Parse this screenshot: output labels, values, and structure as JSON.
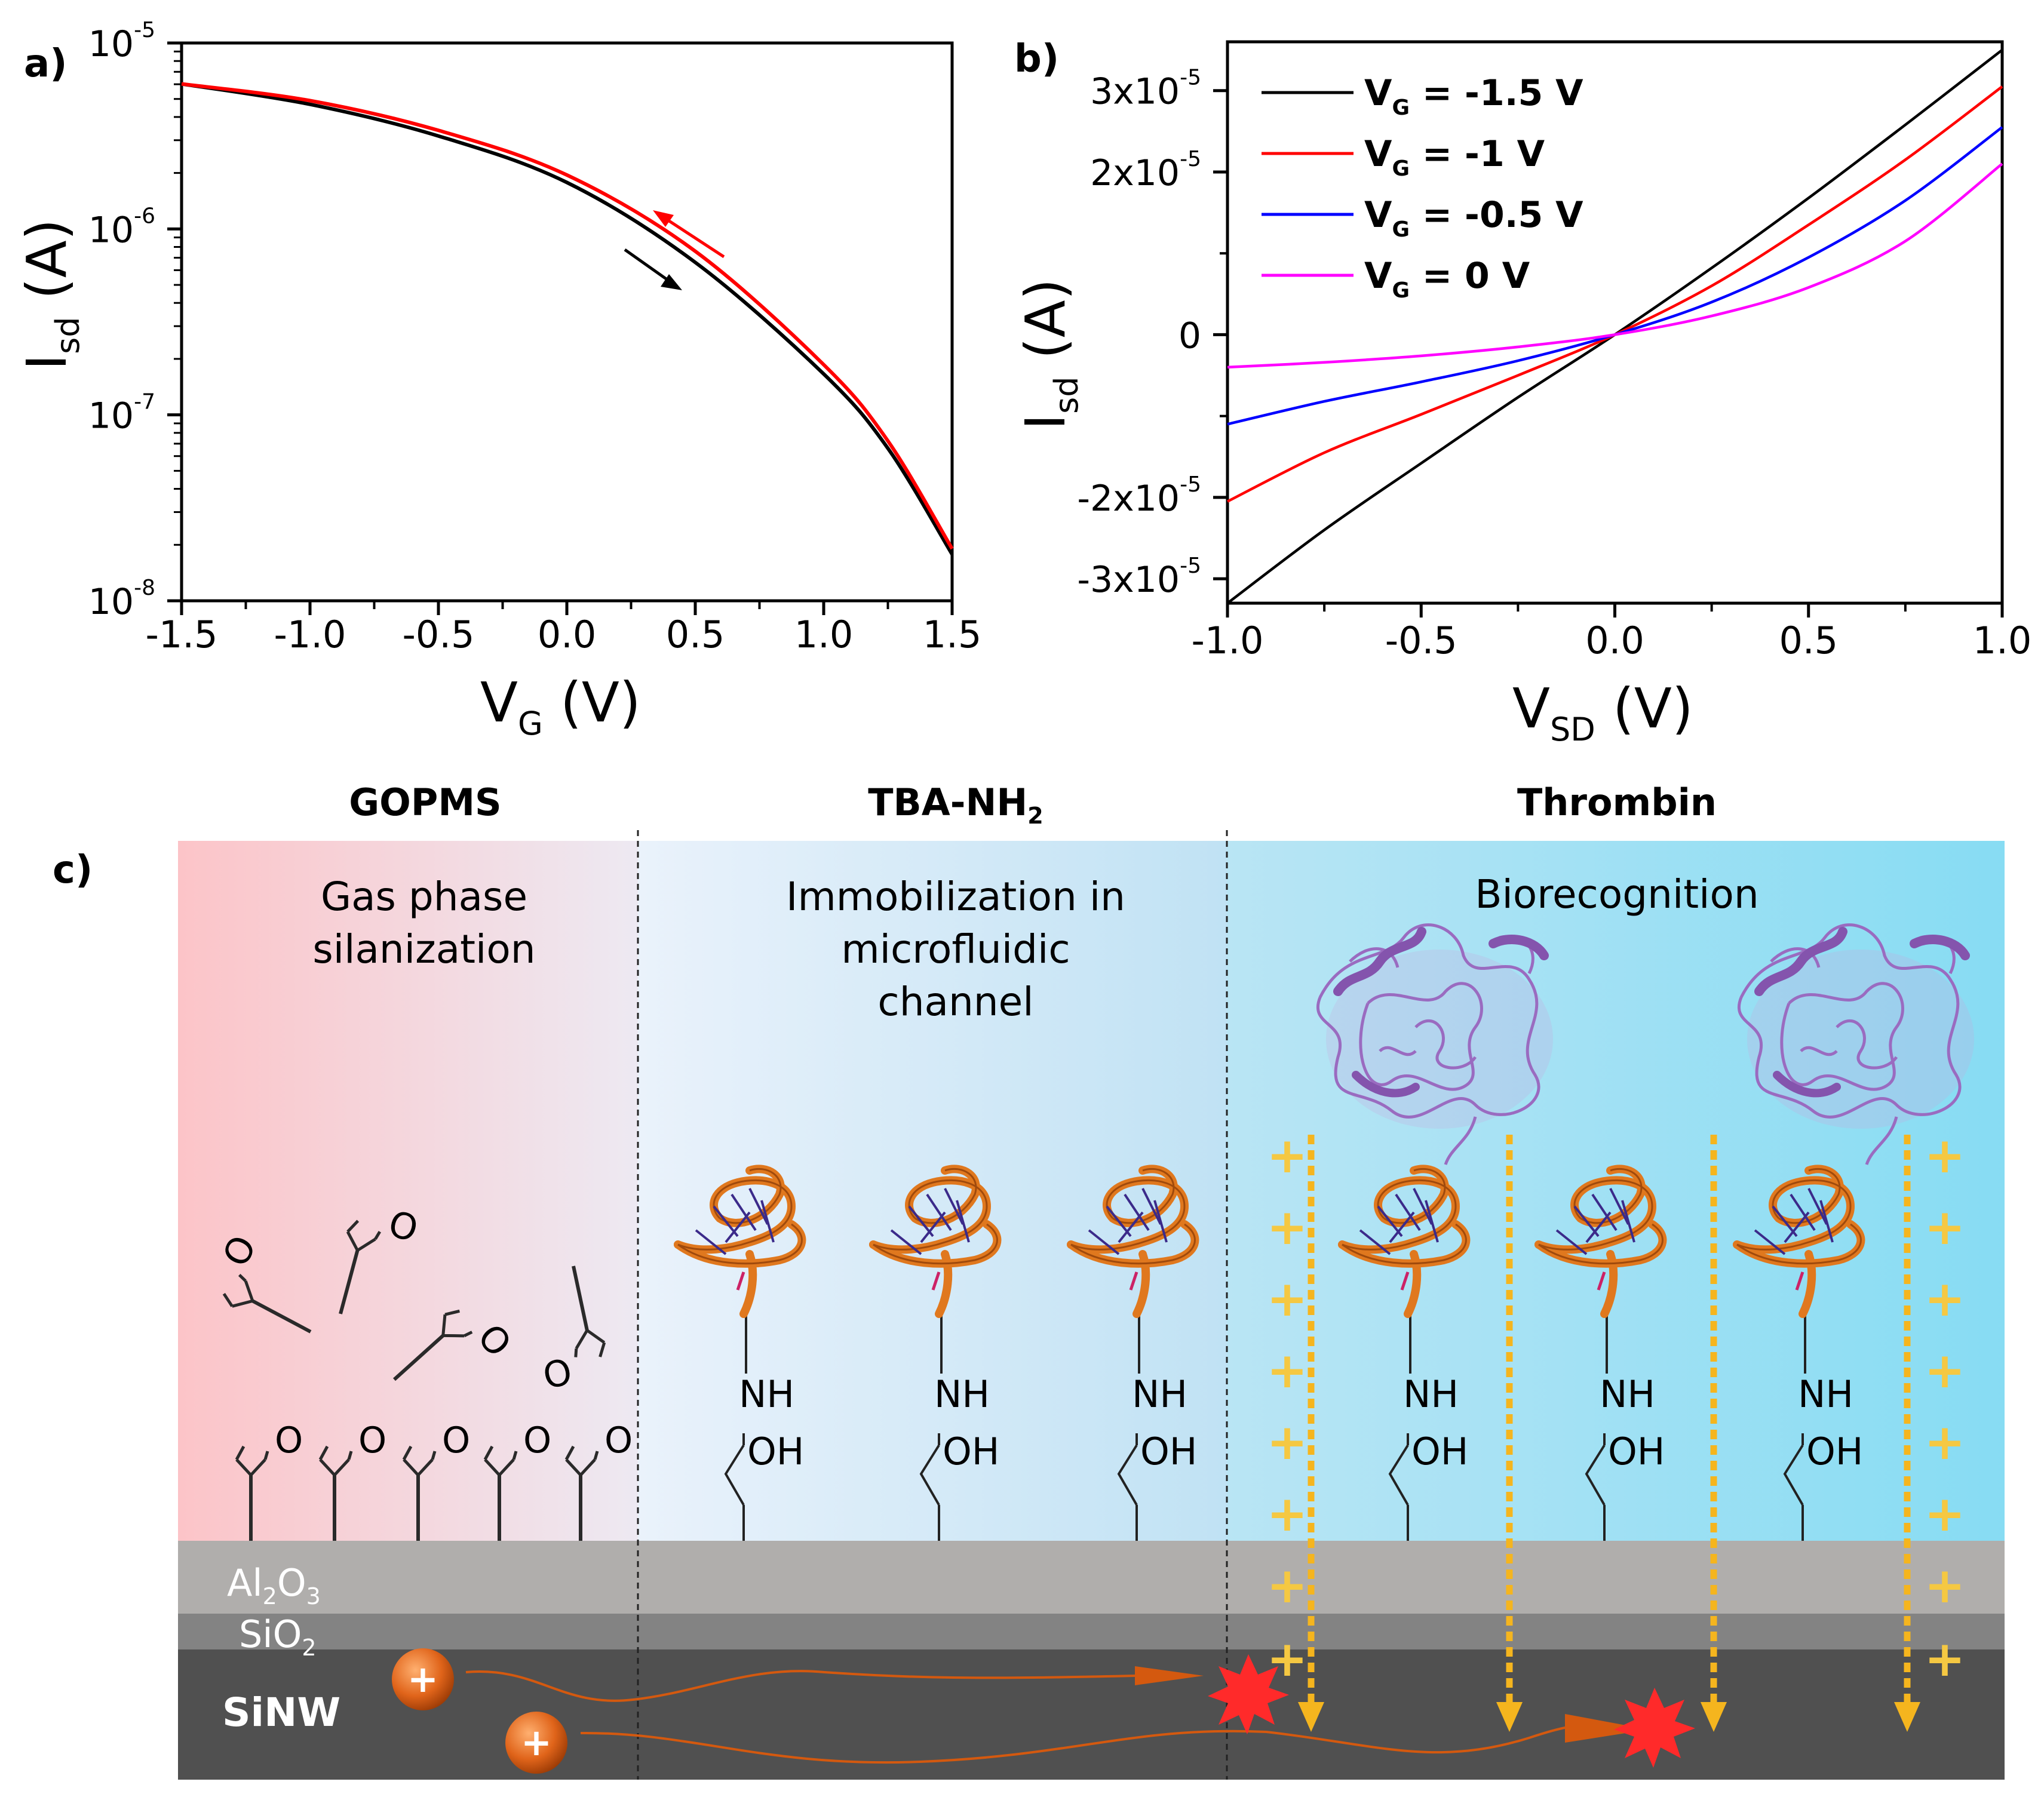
{
  "panel_labels": {
    "a": "a)",
    "b": "b)",
    "c": "c)"
  },
  "colors": {
    "black": "#000000",
    "red": "#ff0000",
    "blue": "#0000ff",
    "magenta": "#ff00ff",
    "plus": "#f5c842",
    "arrow": "#f5b51e",
    "current": "#d4590f",
    "star": "#ff0000"
  },
  "chart_data": [
    {
      "id": "a",
      "type": "line",
      "scale_y": "log",
      "xlim": [
        -1.5,
        1.5
      ],
      "ylim_exp": [
        -8,
        -5
      ],
      "x_ticks": [
        "-1.5",
        "-1.0",
        "-0.5",
        "0.0",
        "0.5",
        "1.0",
        "1.5"
      ],
      "y_ticks": [
        {
          "base": "10",
          "exp": "-8"
        },
        {
          "base": "10",
          "exp": "-7"
        },
        {
          "base": "10",
          "exp": "-6"
        },
        {
          "base": "10",
          "exp": "-5"
        }
      ],
      "xlabel": {
        "main": "V",
        "sub": "G",
        "unit": " (V)"
      },
      "ylabel": {
        "main": "I",
        "sub": "sd",
        "unit": " (A)"
      },
      "series": [
        {
          "name": "forward sweep",
          "color": "#000000",
          "x": [
            -1.5,
            -1.0,
            -0.5,
            0.0,
            0.5,
            1.0,
            1.25,
            1.5
          ],
          "logy": [
            -5.22,
            -5.33,
            -5.5,
            -5.75,
            -6.18,
            -6.78,
            -7.18,
            -7.75
          ]
        },
        {
          "name": "reverse sweep",
          "color": "#ff0000",
          "x": [
            -1.5,
            -1.0,
            -0.5,
            0.0,
            0.5,
            1.0,
            1.25,
            1.5
          ],
          "logy": [
            -5.22,
            -5.31,
            -5.47,
            -5.71,
            -6.12,
            -6.73,
            -7.14,
            -7.72
          ]
        }
      ]
    },
    {
      "id": "b",
      "type": "line",
      "xlim": [
        -1.0,
        1.0
      ],
      "ylim": [
        -3.3e-05,
        3.6e-05
      ],
      "x_ticks": [
        "-1.0",
        "-0.5",
        "0.0",
        "0.5",
        "1.0"
      ],
      "y_ticks": [
        {
          "value": -3e-05,
          "prefix": "-3x10",
          "exp": "-5"
        },
        {
          "value": -2e-05,
          "prefix": "-2x10",
          "exp": "-5"
        },
        {
          "value": 0,
          "prefix": "0",
          "exp": ""
        },
        {
          "value": 2e-05,
          "prefix": "2x10",
          "exp": "-5"
        },
        {
          "value": 3e-05,
          "prefix": "3x10",
          "exp": "-5"
        }
      ],
      "xlabel": {
        "main": "V",
        "sub": "SD",
        "unit": " (V)"
      },
      "ylabel": {
        "main": "I",
        "sub": "sd",
        "unit": " (A)"
      },
      "x": [
        -1.0,
        -0.75,
        -0.5,
        -0.25,
        0.0,
        0.25,
        0.5,
        0.75,
        1.0
      ],
      "series": [
        {
          "name_main": "V",
          "name_sub": "G",
          "name_val": " = -1.5 V",
          "color": "#000000",
          "values": [
            -3.3e-05,
            -2.4e-05,
            -1.58e-05,
            -7.7e-06,
            0.0,
            8.2e-06,
            1.68e-05,
            2.58e-05,
            3.5e-05
          ]
        },
        {
          "name_main": "V",
          "name_sub": "G",
          "name_val": " = -1 V",
          "color": "#ff0000",
          "values": [
            -2.05e-05,
            -1.45e-05,
            -9.8e-06,
            -5e-06,
            0.0,
            6e-06,
            1.35e-05,
            2.15e-05,
            3.05e-05
          ]
        },
        {
          "name_main": "V",
          "name_sub": "G",
          "name_val": " = -0.5 V",
          "color": "#0000ff",
          "values": [
            -1.1e-05,
            -8.2e-06,
            -5.8e-06,
            -3.2e-06,
            0.0,
            4e-06,
            9.5e-06,
            1.65e-05,
            2.55e-05
          ]
        },
        {
          "name_main": "V",
          "name_sub": "G",
          "name_val": " = 0 V",
          "color": "#ff00ff",
          "values": [
            -4e-06,
            -3.4e-06,
            -2.6e-06,
            -1.5e-06,
            0.0,
            2.3e-06,
            5.8e-06,
            1.15e-05,
            2.1e-05
          ]
        }
      ]
    }
  ],
  "schematic": {
    "sections": [
      {
        "header": "GOPMS",
        "step": [
          "Gas phase",
          "silanization"
        ]
      },
      {
        "header_main": "TBA-NH",
        "header_sub": "2",
        "step": [
          "Immobilization in",
          "microfluidic",
          "channel"
        ]
      },
      {
        "header": "Thrombin",
        "step": [
          "Biorecognition"
        ]
      }
    ],
    "layers": {
      "al2o3": {
        "a": "Al",
        "s1": "2",
        "b": "O",
        "s2": "3"
      },
      "sio2": {
        "a": "SiO",
        "s1": "2"
      },
      "sinw": "SiNW"
    },
    "molecule": {
      "nh": "NH",
      "oh": "OH",
      "epoxide_o": "O"
    },
    "charge_symbol": "+"
  }
}
